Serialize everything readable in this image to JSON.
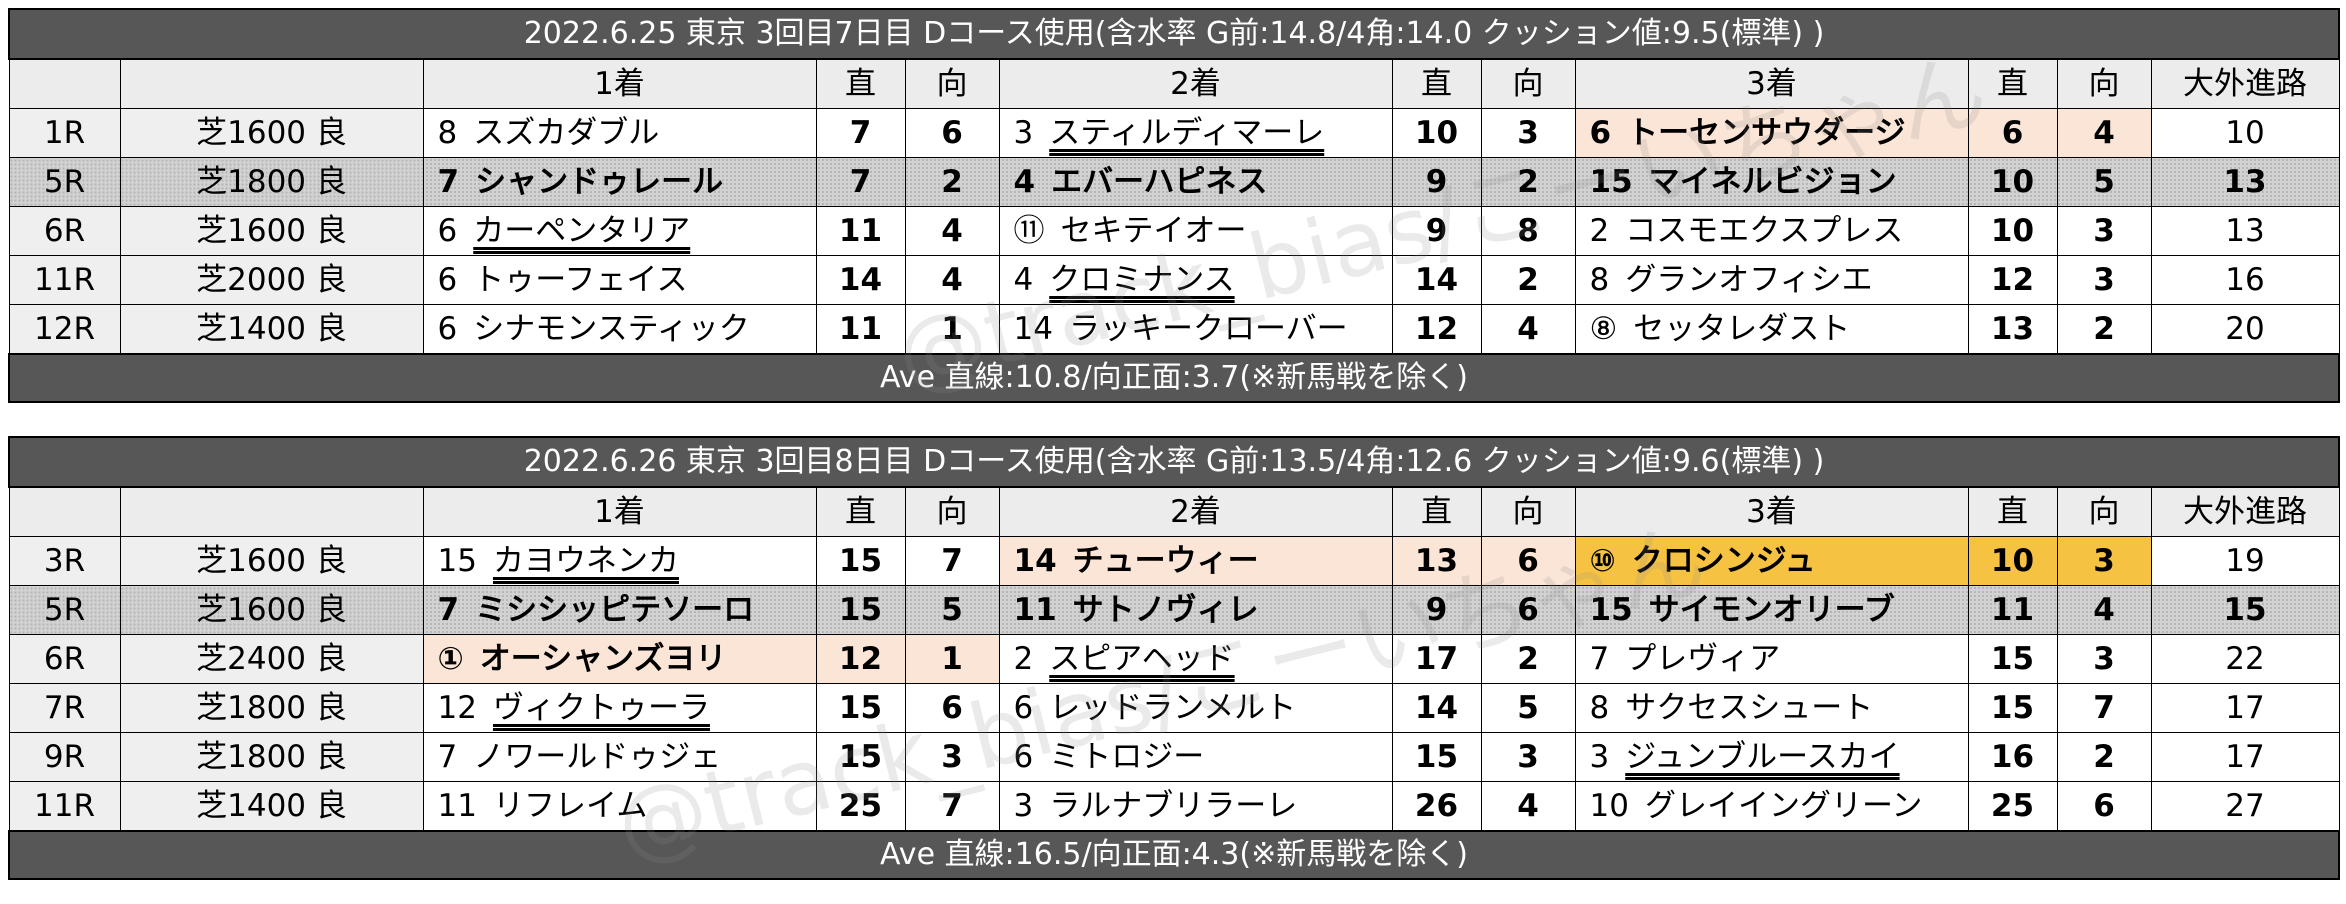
{
  "tables": [
    {
      "title": "2022.6.25 東京 3回目7日目 Dコース使用(含水率 G前:14.8/4角:14.0 クッション値:9.5(標準) )",
      "footer": "Ave 直線:10.8/向正面:3.7(※新馬戦を除く)",
      "headers": {
        "first": "1着",
        "second": "2着",
        "third": "3着",
        "straight": "直",
        "back": "向",
        "outside": "大外進路"
      },
      "rows": [
        {
          "race": "1R",
          "course": "芝1600 良",
          "rowStyle": "",
          "p1": {
            "no": "8",
            "name": "スズカダブル",
            "st": "7",
            "bk": "6",
            "style": ""
          },
          "p2": {
            "no": "3",
            "name": "スティルディマーレ",
            "st": "10",
            "bk": "3",
            "style": "ul"
          },
          "p3": {
            "no": "6",
            "name": "トーセンサウダージ",
            "st": "6",
            "bk": "4",
            "style": "bold peach"
          },
          "outside": "10"
        },
        {
          "race": "5R",
          "course": "芝1800 良",
          "rowStyle": "hatch",
          "p1": {
            "no": "7",
            "name": "シャンドゥレール",
            "st": "7",
            "bk": "2",
            "style": "bold"
          },
          "p2": {
            "no": "4",
            "name": "エバーハピネス",
            "st": "9",
            "bk": "2",
            "style": "bold"
          },
          "p3": {
            "no": "15",
            "name": "マイネルビジョン",
            "st": "10",
            "bk": "5",
            "style": "bold"
          },
          "outside": "13"
        },
        {
          "race": "6R",
          "course": "芝1600 良",
          "rowStyle": "",
          "p1": {
            "no": "6",
            "name": "カーペンタリア",
            "st": "11",
            "bk": "4",
            "style": "ul"
          },
          "p2": {
            "no": "⑪",
            "name": "セキテイオー",
            "st": "9",
            "bk": "8",
            "style": ""
          },
          "p3": {
            "no": "2",
            "name": "コスモエクスプレス",
            "st": "10",
            "bk": "3",
            "style": ""
          },
          "outside": "13"
        },
        {
          "race": "11R",
          "course": "芝2000 良",
          "rowStyle": "",
          "p1": {
            "no": "6",
            "name": "トゥーフェイス",
            "st": "14",
            "bk": "4",
            "style": ""
          },
          "p2": {
            "no": "4",
            "name": "クロミナンス",
            "st": "14",
            "bk": "2",
            "style": "ul"
          },
          "p3": {
            "no": "8",
            "name": "グランオフィシエ",
            "st": "12",
            "bk": "3",
            "style": ""
          },
          "outside": "16"
        },
        {
          "race": "12R",
          "course": "芝1400 良",
          "rowStyle": "",
          "p1": {
            "no": "6",
            "name": "シナモンスティック",
            "st": "11",
            "bk": "1",
            "style": ""
          },
          "p2": {
            "no": "14",
            "name": "ラッキークローバー",
            "st": "12",
            "bk": "4",
            "style": ""
          },
          "p3": {
            "no": "⑧",
            "name": "セッタレダスト",
            "st": "13",
            "bk": "2",
            "style": ""
          },
          "outside": "20"
        }
      ]
    },
    {
      "title": "2022.6.26 東京 3回目8日目 Dコース使用(含水率 G前:13.5/4角:12.6 クッション値:9.6(標準) )",
      "footer": "Ave 直線:16.5/向正面:4.3(※新馬戦を除く)",
      "headers": {
        "first": "1着",
        "second": "2着",
        "third": "3着",
        "straight": "直",
        "back": "向",
        "outside": "大外進路"
      },
      "rows": [
        {
          "race": "3R",
          "course": "芝1600 良",
          "rowStyle": "",
          "p1": {
            "no": "15",
            "name": "カヨウネンカ",
            "st": "15",
            "bk": "7",
            "style": "ul"
          },
          "p2": {
            "no": "14",
            "name": "チューウィー",
            "st": "13",
            "bk": "6",
            "style": "bold peach"
          },
          "p3": {
            "no": "⑩",
            "name": "クロシンジュ",
            "st": "10",
            "bk": "3",
            "style": "bold gold"
          },
          "outside": "19"
        },
        {
          "race": "5R",
          "course": "芝1600 良",
          "rowStyle": "hatch",
          "p1": {
            "no": "7",
            "name": "ミシシッピテソーロ",
            "st": "15",
            "bk": "5",
            "style": "bold"
          },
          "p2": {
            "no": "11",
            "name": "サトノヴィレ",
            "st": "9",
            "bk": "6",
            "style": "bold"
          },
          "p3": {
            "no": "15",
            "name": "サイモンオリーブ",
            "st": "11",
            "bk": "4",
            "style": "bold"
          },
          "outside": "15"
        },
        {
          "race": "6R",
          "course": "芝2400 良",
          "rowStyle": "",
          "p1": {
            "no": "①",
            "name": "オーシャンズヨリ",
            "st": "12",
            "bk": "1",
            "style": "bold peach"
          },
          "p2": {
            "no": "2",
            "name": "スピアヘッド",
            "st": "17",
            "bk": "2",
            "style": "ul"
          },
          "p3": {
            "no": "7",
            "name": "プレヴィア",
            "st": "15",
            "bk": "3",
            "style": ""
          },
          "outside": "22"
        },
        {
          "race": "7R",
          "course": "芝1800 良",
          "rowStyle": "",
          "p1": {
            "no": "12",
            "name": "ヴィクトゥーラ",
            "st": "15",
            "bk": "6",
            "style": "ul"
          },
          "p2": {
            "no": "6",
            "name": "レッドランメルト",
            "st": "14",
            "bk": "5",
            "style": ""
          },
          "p3": {
            "no": "8",
            "name": "サクセスシュート",
            "st": "15",
            "bk": "7",
            "style": ""
          },
          "outside": "17"
        },
        {
          "race": "9R",
          "course": "芝1800 良",
          "rowStyle": "",
          "p1": {
            "no": "7",
            "name": "ノワールドゥジェ",
            "st": "15",
            "bk": "3",
            "style": ""
          },
          "p2": {
            "no": "6",
            "name": "ミトロジー",
            "st": "15",
            "bk": "3",
            "style": ""
          },
          "p3": {
            "no": "3",
            "name": "ジュンブルースカイ",
            "st": "16",
            "bk": "2",
            "style": "ul"
          },
          "outside": "17"
        },
        {
          "race": "11R",
          "course": "芝1400 良",
          "rowStyle": "",
          "p1": {
            "no": "11",
            "name": "リフレイム",
            "st": "25",
            "bk": "7",
            "style": ""
          },
          "p2": {
            "no": "3",
            "name": "ラルナブリラーレ",
            "st": "26",
            "bk": "4",
            "style": ""
          },
          "p3": {
            "no": "10",
            "name": "グレイイングリーン",
            "st": "25",
            "bk": "6",
            "style": ""
          },
          "outside": "27"
        }
      ]
    }
  ],
  "watermarks": [
    "@track_bias/こーいちゃん",
    "@track_bias/こーいちゃん"
  ]
}
